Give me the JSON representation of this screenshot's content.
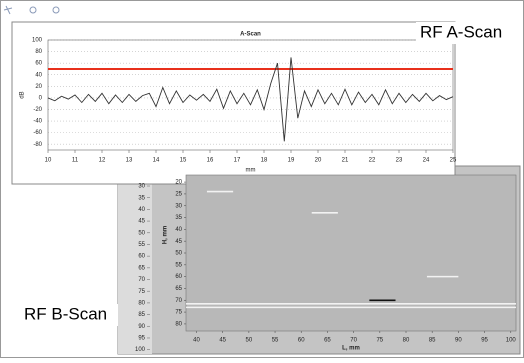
{
  "chart_data": [
    {
      "type": "line",
      "title": "A-Scan",
      "xlabel": "mm",
      "ylabel": "dB",
      "annotation": "RF A-Scan",
      "x": [
        10,
        10.25,
        10.5,
        10.75,
        11,
        11.25,
        11.5,
        11.75,
        12,
        12.25,
        12.5,
        12.75,
        13,
        13.25,
        13.5,
        13.75,
        14,
        14.25,
        14.5,
        14.75,
        15,
        15.25,
        15.5,
        15.75,
        16,
        16.25,
        16.5,
        16.75,
        17,
        17.25,
        17.5,
        17.75,
        18,
        18.25,
        18.5,
        18.75,
        19,
        19.25,
        19.5,
        19.75,
        20,
        20.25,
        20.5,
        20.75,
        21,
        21.25,
        21.5,
        21.75,
        22,
        22.25,
        22.5,
        22.75,
        23,
        23.25,
        23.5,
        23.75,
        24,
        24.25,
        24.5,
        24.75,
        25
      ],
      "series": [
        {
          "color": "#333333",
          "values": [
            0,
            -5,
            3,
            -2,
            5,
            -8,
            6,
            -6,
            8,
            -10,
            5,
            -8,
            6,
            -6,
            4,
            8,
            -15,
            18,
            -10,
            12,
            -8,
            5,
            -4,
            6,
            -6,
            15,
            -18,
            12,
            -10,
            8,
            -12,
            14,
            -20,
            25,
            60,
            -75,
            70,
            -35,
            12,
            -15,
            14,
            -10,
            8,
            -12,
            15,
            -12,
            10,
            -8,
            6,
            -12,
            14,
            -10,
            8,
            -8,
            6,
            -6,
            8,
            -5,
            4,
            -3,
            2
          ]
        }
      ],
      "threshold_line": {
        "value": 50,
        "color": "#e8301c"
      },
      "xlim": [
        10,
        25
      ],
      "xticks": [
        10,
        11,
        12,
        13,
        14,
        15,
        16,
        17,
        18,
        19,
        20,
        21,
        22,
        23,
        24,
        25
      ],
      "ylim": [
        -90,
        100
      ],
      "yticks": [
        100,
        80,
        60,
        40,
        20,
        0,
        -20,
        -40,
        -60,
        -80
      ],
      "grid": true
    },
    {
      "type": "bscan",
      "xlabel": "L, mm",
      "ylabel": "H, mm",
      "annotation": "RF B-Scan",
      "xlim": [
        38,
        101
      ],
      "xticks": [
        40,
        45,
        50,
        55,
        60,
        65,
        70,
        75,
        80,
        85,
        90,
        95,
        100
      ],
      "ylim": [
        17,
        83
      ],
      "yticks": [
        20,
        25,
        30,
        35,
        40,
        45,
        50,
        55,
        60,
        65,
        70,
        75,
        80
      ],
      "reflectors": [
        {
          "l": [
            42,
            47
          ],
          "h": 24,
          "color": "#f2f2f2"
        },
        {
          "l": [
            62,
            67
          ],
          "h": 33,
          "color": "#f2f2f2"
        },
        {
          "l": [
            84,
            90
          ],
          "h": 60,
          "color": "#f2f2f2"
        },
        {
          "l": [
            73,
            78
          ],
          "h": 70,
          "color": "#111111"
        },
        {
          "l": [
            38,
            101
          ],
          "h": 71.5,
          "color": "#f2f2f2"
        },
        {
          "l": [
            38,
            101
          ],
          "h": 73,
          "color": "#f2f2f2"
        }
      ]
    },
    {
      "type": "axis",
      "ylim": [
        27,
        101
      ],
      "yticks": [
        30,
        35,
        40,
        45,
        50,
        55,
        60,
        65,
        70,
        75,
        80,
        85,
        90,
        95,
        100
      ]
    }
  ]
}
